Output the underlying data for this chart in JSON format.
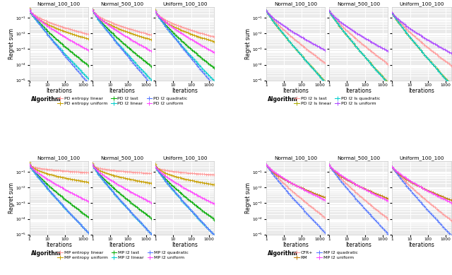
{
  "panel_titles": [
    "Normal_100_100",
    "Normal_500_100",
    "Uniform_100_100"
  ],
  "background_color": "#EBEBEB",
  "grid_color": "#FFFFFF",
  "subplots": [
    {
      "curves": [
        {
          "label": "PD entropy linear",
          "color": "#FF9999",
          "starts": [
            0.35,
            0.33,
            0.27
          ],
          "ends": [
            0.009,
            0.008,
            0.006
          ],
          "exp": 0.6
        },
        {
          "label": "PD entropy uniform",
          "color": "#C8A000",
          "starts": [
            0.4,
            0.37,
            0.31
          ],
          "ends": [
            0.0045,
            0.004,
            0.003
          ],
          "exp": 0.55
        },
        {
          "label": "PD l2 last",
          "color": "#00AA00",
          "starts": [
            0.33,
            0.31,
            0.25
          ],
          "ends": [
            9e-05,
            8e-05,
            6e-05
          ],
          "exp": 0.82
        },
        {
          "label": "PD l2 linear",
          "color": "#00CCCC",
          "starts": [
            0.33,
            0.31,
            0.25
          ],
          "ends": [
            1.3e-05,
            1.1e-05,
            9e-06
          ],
          "exp": 0.88
        },
        {
          "label": "PD l2 quadratic",
          "color": "#5577FF",
          "starts": [
            0.33,
            0.31,
            0.25
          ],
          "ends": [
            6.5e-06,
            5.5e-06,
            4.5e-06
          ],
          "exp": 0.93
        },
        {
          "label": "PD l2 uniform",
          "color": "#FF44FF",
          "starts": [
            0.33,
            0.31,
            0.25
          ],
          "ends": [
            0.00085,
            0.00075,
            0.0006
          ],
          "exp": 0.78
        }
      ],
      "legend_ncol": 3
    },
    {
      "curves": [
        {
          "label": "PD l2 ls last",
          "color": "#FF9999",
          "starts": [
            0.3,
            0.28,
            0.22
          ],
          "ends": [
            0.00013,
            0.00011,
            9e-05
          ],
          "exp": 0.82
        },
        {
          "label": "PD l2 ls linear",
          "color": "#AAAA00",
          "starts": [
            0.28,
            0.26,
            0.2
          ],
          "ends": [
            8.5e-06,
            7.2e-06,
            5.5e-06
          ],
          "exp": 0.9
        },
        {
          "label": "PD l2 ls quadratic",
          "color": "#00CCCC",
          "starts": [
            0.28,
            0.26,
            0.2
          ],
          "ends": [
            7.5e-06,
            6.3e-06,
            4.8e-06
          ],
          "exp": 0.92
        },
        {
          "label": "PD l2 ls uniform",
          "color": "#AA44FF",
          "starts": [
            0.3,
            0.28,
            0.22
          ],
          "ends": [
            0.00085,
            0.00073,
            0.00055
          ],
          "exp": 0.78
        }
      ],
      "legend_ncol": 2
    },
    {
      "curves": [
        {
          "label": "MP entropy linear",
          "color": "#FF9999",
          "starts": [
            0.33,
            0.31,
            0.25
          ],
          "ends": [
            0.09,
            0.08,
            0.065
          ],
          "exp": 0.38
        },
        {
          "label": "MP entropy uniform",
          "color": "#C8A000",
          "starts": [
            0.4,
            0.37,
            0.31
          ],
          "ends": [
            0.022,
            0.019,
            0.015
          ],
          "exp": 0.48
        },
        {
          "label": "MP l2 last",
          "color": "#00AA00",
          "starts": [
            0.3,
            0.28,
            0.22
          ],
          "ends": [
            0.00013,
            0.00011,
            9e-05
          ],
          "exp": 0.82
        },
        {
          "label": "MP l2 linear",
          "color": "#00CCCC",
          "starts": [
            0.3,
            0.28,
            0.22
          ],
          "ends": [
            1.3e-05,
            1.1e-05,
            9e-06
          ],
          "exp": 0.88
        },
        {
          "label": "MP l2 quadratic",
          "color": "#5577FF",
          "starts": [
            0.3,
            0.28,
            0.22
          ],
          "ends": [
            1.3e-05,
            1.1e-05,
            9e-06
          ],
          "exp": 0.9
        },
        {
          "label": "MP l2 uniform",
          "color": "#FF44FF",
          "starts": [
            0.3,
            0.28,
            0.22
          ],
          "ends": [
            0.0013,
            0.0011,
            0.0009
          ],
          "exp": 0.78
        }
      ],
      "legend_ncol": 3
    },
    {
      "curves": [
        {
          "label": "CFR+",
          "color": "#FF9999",
          "starts": [
            0.3,
            0.28,
            0.22
          ],
          "ends": [
            0.00012,
            0.0001,
            8e-05
          ],
          "exp": 0.85
        },
        {
          "label": "RM",
          "color": "#BB7700",
          "starts": [
            0.3,
            0.28,
            0.22
          ],
          "ends": [
            0.0023,
            0.002,
            0.0016
          ],
          "exp": 0.68
        },
        {
          "label": "MP l2 quadratic",
          "color": "#5577FF",
          "starts": [
            0.3,
            0.28,
            0.22
          ],
          "ends": [
            1.3e-05,
            1.1e-05,
            9e-06
          ],
          "exp": 0.9
        },
        {
          "label": "MP l2 uniform",
          "color": "#FF44FF",
          "starts": [
            0.3,
            0.28,
            0.22
          ],
          "ends": [
            0.0016,
            0.0014,
            0.0011
          ],
          "exp": 0.78
        }
      ],
      "legend_ncol": 2
    }
  ]
}
